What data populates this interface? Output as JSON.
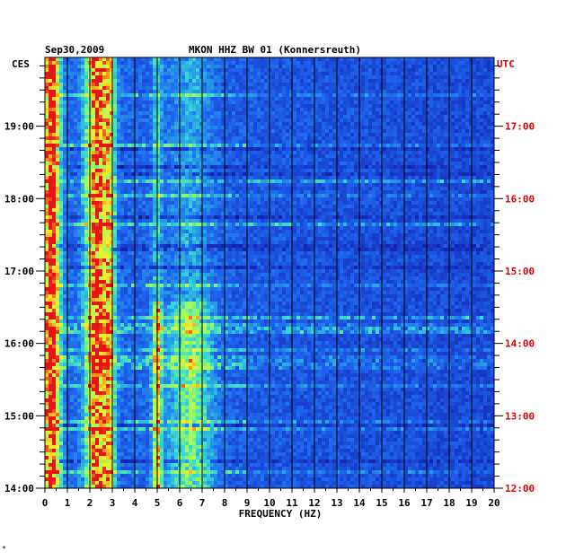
{
  "chart_data": {
    "type": "heatmap",
    "date_label": "Sep30,2009",
    "title": "MKON HHZ BW 01 (Konnersreuth)",
    "left_timezone": "CES",
    "right_timezone": "UTC",
    "xlabel": "FREQUENCY (HZ)",
    "xlim": [
      0,
      20
    ],
    "x_ticks": [
      "0",
      "1",
      "2",
      "3",
      "4",
      "5",
      "6",
      "7",
      "8",
      "9",
      "10",
      "11",
      "12",
      "13",
      "14",
      "15",
      "16",
      "17",
      "18",
      "19",
      "20"
    ],
    "left_time_ticks": [
      "14:00",
      "15:00",
      "16:00",
      "17:00",
      "18:00",
      "19:00"
    ],
    "right_time_ticks": [
      "12:00",
      "13:00",
      "14:00",
      "15:00",
      "16:00",
      "17:00"
    ],
    "time_range_ces_hours": [
      14.0,
      19.95
    ],
    "colors": {
      "background": "#1e2a9c",
      "low": "#0a1478",
      "mid": "#1e64f0",
      "cyan": "#32d2dc",
      "green": "#96ff64",
      "yellow": "#ffeb28",
      "red": "#e61414",
      "utc_label": "#dd0000",
      "gridline": "#000000"
    },
    "energy_bands_hz": [
      {
        "center": 0.3,
        "width": 0.35,
        "strength": 0.85
      },
      {
        "center": 2.3,
        "width": 0.45,
        "strength": 0.75
      },
      {
        "center": 2.9,
        "width": 0.25,
        "strength": 0.45
      },
      {
        "center": 5.0,
        "width": 0.2,
        "strength": 0.55
      },
      {
        "center": 6.5,
        "width": 0.9,
        "strength": 0.35
      }
    ],
    "event_lines_ces_hours": [
      16.35,
      16.18,
      17.65,
      18.25
    ]
  },
  "footer_mark": "*"
}
